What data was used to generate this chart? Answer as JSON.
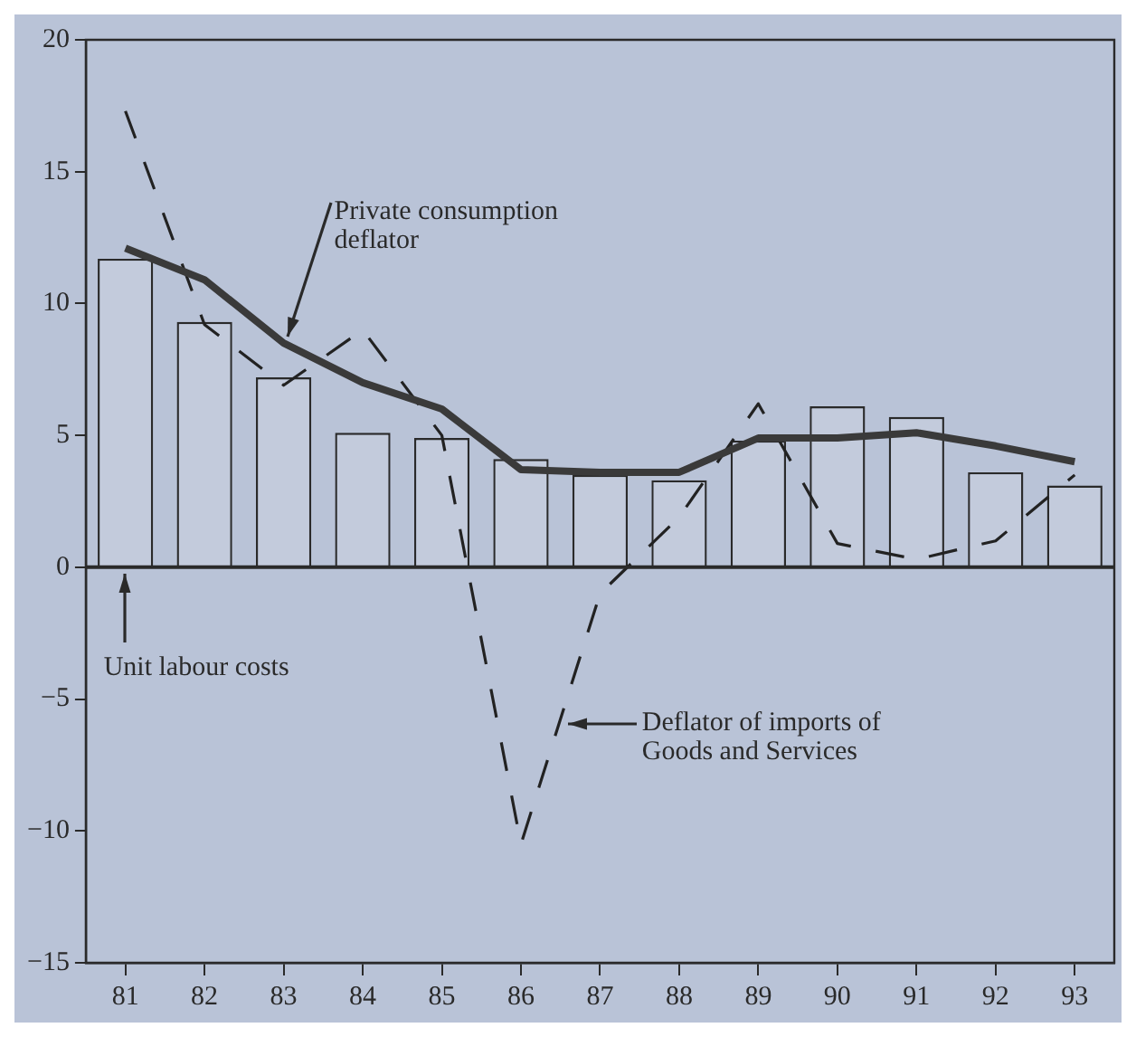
{
  "chart_data": {
    "type": "bar",
    "categories": [
      "81",
      "82",
      "83",
      "84",
      "85",
      "86",
      "87",
      "88",
      "89",
      "90",
      "91",
      "92",
      "93"
    ],
    "series": [
      {
        "type": "bar",
        "color": "#c3cbdc",
        "values": [
          11.7,
          9.3,
          7.2,
          5.1,
          4.9,
          4.1,
          3.5,
          3.3,
          4.8,
          6.1,
          5.7,
          3.6,
          3.1
        ]
      },
      {
        "type": "line",
        "color": "#3a3a3a",
        "line_style": "solid",
        "values": [
          12.1,
          10.9,
          8.5,
          7.0,
          6.0,
          3.7,
          3.6,
          3.6,
          4.9,
          4.9,
          5.1,
          4.6,
          4.0
        ]
      },
      {
        "type": "line",
        "color": "#222222",
        "line_style": "dashed",
        "values": [
          17.3,
          9.2,
          6.9,
          9.0,
          5.0,
          -10.5,
          -1.0,
          1.9,
          6.2,
          0.9,
          0.3,
          1.0,
          3.5
        ]
      }
    ],
    "annotations": [
      {
        "text": "Unit labour costs",
        "x": "81",
        "y": 0
      },
      {
        "text": "Private consumption deflator",
        "x": "83",
        "y": 8.5
      },
      "Deflator of imports of Goods and Services"
    ],
    "ylim": [
      -15,
      20
    ],
    "yticks": [
      -15,
      -10,
      -5,
      0,
      5,
      10,
      15,
      20
    ],
    "ref_lines": [
      {
        "axis": "y",
        "value": 0
      }
    ],
    "grid": false,
    "legend": false,
    "marker": "none"
  }
}
